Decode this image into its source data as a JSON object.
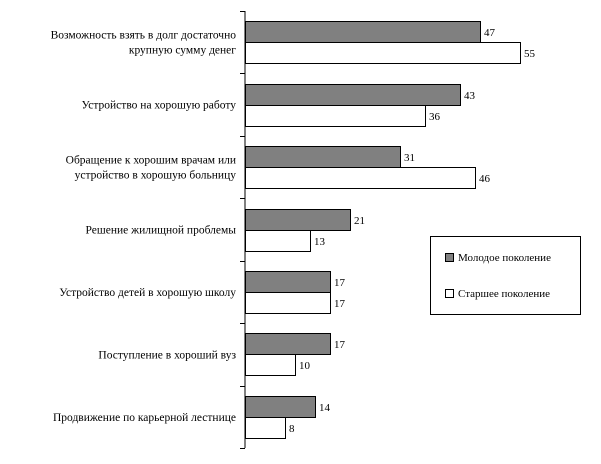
{
  "chart_data": {
    "type": "bar",
    "orientation": "horizontal",
    "categories": [
      [
        "Возможность взять в долг достаточно",
        "крупную сумму денег"
      ],
      [
        "Устройство на хорошую работу"
      ],
      [
        "Обращение к хорошим врачам или",
        "устройство в хорошую больницу"
      ],
      [
        "Решение жилищной проблемы"
      ],
      [
        "Устройство детей в хорошую школу"
      ],
      [
        "Поступление в хороший вуз"
      ],
      [
        "Продвижение по карьерной лестнице"
      ]
    ],
    "series": [
      {
        "name": "Молодое поколение",
        "color": "#808080",
        "values": [
          47,
          43,
          31,
          21,
          17,
          17,
          14
        ]
      },
      {
        "name": "Старшее поколение",
        "color": "#ffffff",
        "values": [
          55,
          36,
          46,
          13,
          17,
          10,
          8
        ]
      }
    ],
    "xlim": [
      0,
      60
    ],
    "grid": false,
    "legend_position": "right",
    "title": "",
    "xlabel": "",
    "ylabel": ""
  }
}
